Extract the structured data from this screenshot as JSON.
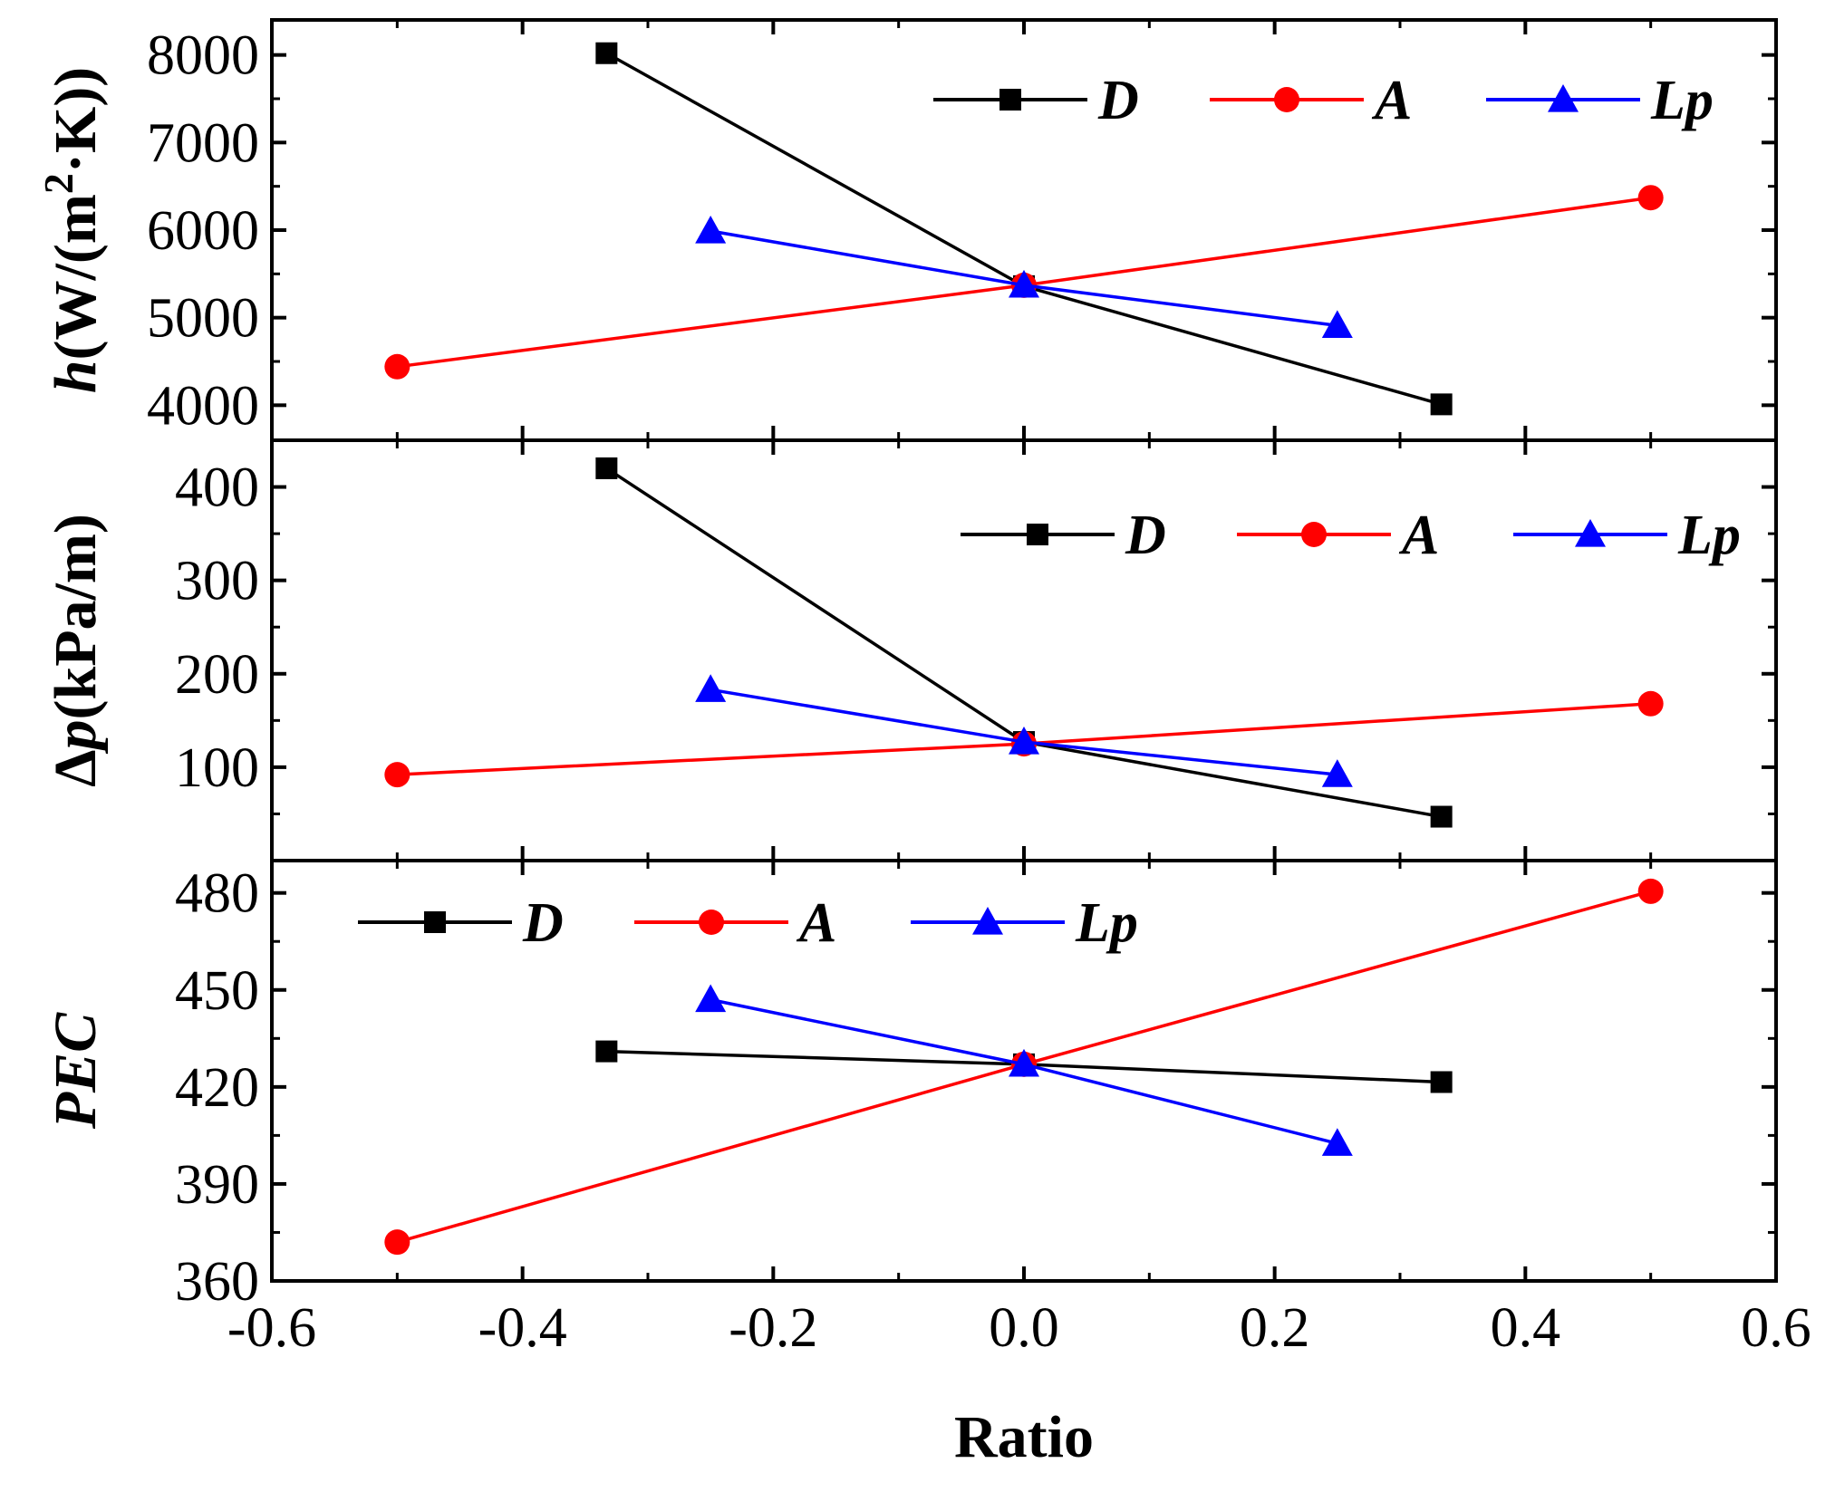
{
  "chart_data": {
    "type": "line",
    "xlabel": "Ratio",
    "xlim": [
      -0.6,
      0.6
    ],
    "xticks": [
      -0.6,
      -0.4,
      -0.2,
      0.0,
      0.2,
      0.4,
      0.6
    ],
    "xtick_labels": [
      "-0.6",
      "-0.4",
      "-0.2",
      "0.0",
      "0.2",
      "0.4",
      "0.6"
    ],
    "panels": [
      {
        "id": "h",
        "ylabel_italic": "h",
        "ylabel_rest": "(W/(m",
        "ylabel_sup": "2",
        "ylabel_tail": "·K))",
        "ylim": [
          3600,
          8400
        ],
        "yticks": [
          4000,
          5000,
          6000,
          7000,
          8000
        ],
        "ytick_labels": [
          "4000",
          "5000",
          "6000",
          "7000",
          "8000"
        ],
        "legend_position": "top-right",
        "series": [
          {
            "name": "D",
            "color": "#000000",
            "marker": "square",
            "x": [
              -0.333,
              0.0,
              0.333
            ],
            "y": [
              8020,
              5360,
              4010
            ]
          },
          {
            "name": "A",
            "color": "#ff0000",
            "marker": "circle",
            "x": [
              -0.5,
              0.0,
              0.5
            ],
            "y": [
              4440,
              5370,
              6370
            ]
          },
          {
            "name": "Lp",
            "color": "#0000ff",
            "marker": "triangle",
            "x": [
              -0.25,
              0.0,
              0.25
            ],
            "y": [
              5990,
              5370,
              4910
            ]
          }
        ]
      },
      {
        "id": "dp",
        "ylabel_prefix": "Δ",
        "ylabel_italic": "p",
        "ylabel_rest": "(kPa/m)",
        "ylim": [
          0,
          450
        ],
        "yticks": [
          100,
          200,
          300,
          400
        ],
        "ytick_labels": [
          "100",
          "200",
          "300",
          "400"
        ],
        "legend_position": "top-right",
        "series": [
          {
            "name": "D",
            "color": "#000000",
            "marker": "square",
            "x": [
              -0.333,
              0.0,
              0.333
            ],
            "y": [
              420,
              127,
              47
            ]
          },
          {
            "name": "A",
            "color": "#ff0000",
            "marker": "circle",
            "x": [
              -0.5,
              0.0,
              0.5
            ],
            "y": [
              92,
              125,
              168
            ]
          },
          {
            "name": "Lp",
            "color": "#0000ff",
            "marker": "triangle",
            "x": [
              -0.25,
              0.0,
              0.25
            ],
            "y": [
              183,
              127,
              92
            ]
          }
        ]
      },
      {
        "id": "pec",
        "ylabel_italic": "PEC",
        "ylim": [
          360,
          490
        ],
        "yticks": [
          360,
          390,
          420,
          450,
          480
        ],
        "ytick_labels": [
          "360",
          "390",
          "420",
          "450",
          "480"
        ],
        "legend_position": "top-left",
        "series": [
          {
            "name": "D",
            "color": "#000000",
            "marker": "square",
            "x": [
              -0.333,
              0.0,
              0.333
            ],
            "y": [
              431,
              427,
              421.5
            ]
          },
          {
            "name": "A",
            "color": "#ff0000",
            "marker": "circle",
            "x": [
              -0.5,
              0.0,
              0.5
            ],
            "y": [
              372,
              427,
              480.5
            ]
          },
          {
            "name": "Lp",
            "color": "#0000ff",
            "marker": "triangle",
            "x": [
              -0.25,
              0.0,
              0.25
            ],
            "y": [
              447,
              427,
              402.5
            ]
          }
        ]
      }
    ]
  }
}
